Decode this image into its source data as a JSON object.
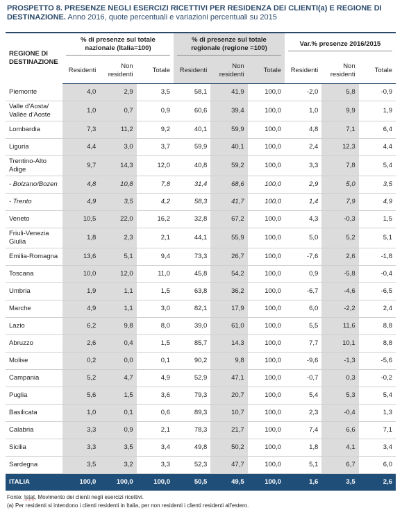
{
  "header": {
    "title": "PROSPETTO 8. PRESENZE NEGLI ESERCIZI RICETTIVI PER RESIDENZA DEI CLIENTI(a) E REGIONE DI DESTINAZIONE.",
    "subtitle": "Anno 2016, quote percentuali e variazioni percentuali su 2015"
  },
  "table": {
    "row_header": "REGIONE DI DESTINAZIONE",
    "groups": [
      "% di presenze sul totale nazionale (Italia=100)",
      "% di presenze sul totale regionale (regione =100)",
      "Var.% presenze 2016/2015"
    ],
    "columns": [
      "Residenti",
      "Non residenti",
      "Totale",
      "Residenti",
      "Non residenti",
      "Totale",
      "Residenti",
      "Non residenti",
      "Totale"
    ],
    "rows": [
      {
        "label": "Piemonte",
        "values": [
          "4,0",
          "2,9",
          "3,5",
          "58,1",
          "41,9",
          "100,0",
          "-2,0",
          "5,8",
          "-0,9"
        ]
      },
      {
        "label": "Valle d'Aosta/ Vallée d'Aoste",
        "values": [
          "1,0",
          "0,7",
          "0,9",
          "60,6",
          "39,4",
          "100,0",
          "1,0",
          "9,9",
          "1,9"
        ]
      },
      {
        "label": "Lombardia",
        "values": [
          "7,3",
          "11,2",
          "9,2",
          "40,1",
          "59,9",
          "100,0",
          "4,8",
          "7,1",
          "6,4"
        ]
      },
      {
        "label": "Liguria",
        "values": [
          "4,4",
          "3,0",
          "3,7",
          "59,9",
          "40,1",
          "100,0",
          "2,4",
          "12,3",
          "4,4"
        ]
      },
      {
        "label": "Trentino-Alto Adige",
        "values": [
          "9,7",
          "14,3",
          "12,0",
          "40,8",
          "59,2",
          "100,0",
          "3,3",
          "7,8",
          "5,4"
        ]
      },
      {
        "label": "- Bolzano/Bozen",
        "italic": true,
        "values": [
          "4,8",
          "10,8",
          "7,8",
          "31,4",
          "68,6",
          "100,0",
          "2,9",
          "5,0",
          "3,5"
        ]
      },
      {
        "label": "- Trento",
        "italic": true,
        "values": [
          "4,9",
          "3,5",
          "4,2",
          "58,3",
          "41,7",
          "100,0",
          "1,4",
          "7,9",
          "4,9"
        ]
      },
      {
        "label": "Veneto",
        "values": [
          "10,5",
          "22,0",
          "16,2",
          "32,8",
          "67,2",
          "100,0",
          "4,3",
          "-0,3",
          "1,5"
        ]
      },
      {
        "label": "Friuli-Venezia Giulia",
        "values": [
          "1,8",
          "2,3",
          "2,1",
          "44,1",
          "55,9",
          "100,0",
          "5,0",
          "5,2",
          "5,1"
        ]
      },
      {
        "label": "Emilia-Romagna",
        "values": [
          "13,6",
          "5,1",
          "9,4",
          "73,3",
          "26,7",
          "100,0",
          "-7,6",
          "2,6",
          "-1,8"
        ]
      },
      {
        "label": "Toscana",
        "values": [
          "10,0",
          "12,0",
          "11,0",
          "45,8",
          "54,2",
          "100,0",
          "0,9",
          "-5,8",
          "-0,4"
        ]
      },
      {
        "label": "Umbria",
        "values": [
          "1,9",
          "1,1",
          "1,5",
          "63,8",
          "36,2",
          "100,0",
          "-6,7",
          "-4,6",
          "-6,5"
        ]
      },
      {
        "label": "Marche",
        "values": [
          "4,9",
          "1,1",
          "3,0",
          "82,1",
          "17,9",
          "100,0",
          "6,0",
          "-2,2",
          "2,4"
        ]
      },
      {
        "label": "Lazio",
        "values": [
          "6,2",
          "9,8",
          "8,0",
          "39,0",
          "61,0",
          "100,0",
          "5,5",
          "11,6",
          "8,8"
        ]
      },
      {
        "label": "Abruzzo",
        "values": [
          "2,6",
          "0,4",
          "1,5",
          "85,7",
          "14,3",
          "100,0",
          "7,7",
          "10,1",
          "8,8"
        ]
      },
      {
        "label": "Molise",
        "values": [
          "0,2",
          "0,0",
          "0,1",
          "90,2",
          "9,8",
          "100,0",
          "-9,6",
          "-1,3",
          "-5,6"
        ]
      },
      {
        "label": "Campania",
        "values": [
          "5,2",
          "4,7",
          "4,9",
          "52,9",
          "47,1",
          "100,0",
          "-0,7",
          "0,3",
          "-0,2"
        ]
      },
      {
        "label": "Puglia",
        "values": [
          "5,6",
          "1,5",
          "3,6",
          "79,3",
          "20,7",
          "100,0",
          "5,4",
          "5,3",
          "5,4"
        ]
      },
      {
        "label": "Basilicata",
        "values": [
          "1,0",
          "0,1",
          "0,6",
          "89,3",
          "10,7",
          "100,0",
          "2,3",
          "-0,4",
          "1,3"
        ]
      },
      {
        "label": "Calabria",
        "values": [
          "3,3",
          "0,9",
          "2,1",
          "78,3",
          "21,7",
          "100,0",
          "7,4",
          "6,6",
          "7,1"
        ]
      },
      {
        "label": "Sicilia",
        "values": [
          "3,3",
          "3,5",
          "3,4",
          "49,8",
          "50,2",
          "100,0",
          "1,8",
          "4,1",
          "3,4"
        ]
      },
      {
        "label": "Sardegna",
        "values": [
          "3,5",
          "3,2",
          "3,3",
          "52,3",
          "47,7",
          "100,0",
          "5,1",
          "6,7",
          "6,0"
        ]
      }
    ],
    "total": {
      "label": "ITALIA",
      "values": [
        "100,0",
        "100,0",
        "100,0",
        "50,5",
        "49,5",
        "100,0",
        "1,6",
        "3,5",
        "2,6"
      ]
    }
  },
  "footer": {
    "source_prefix": "Fonte:",
    "source_org": "Istat",
    "source_text": ", Movimento dei clienti negli esercizi ricettivi.",
    "note": "(a) Per residenti si intendono i clienti residenti in Italia, per non residenti i clienti residenti all'estero."
  }
}
